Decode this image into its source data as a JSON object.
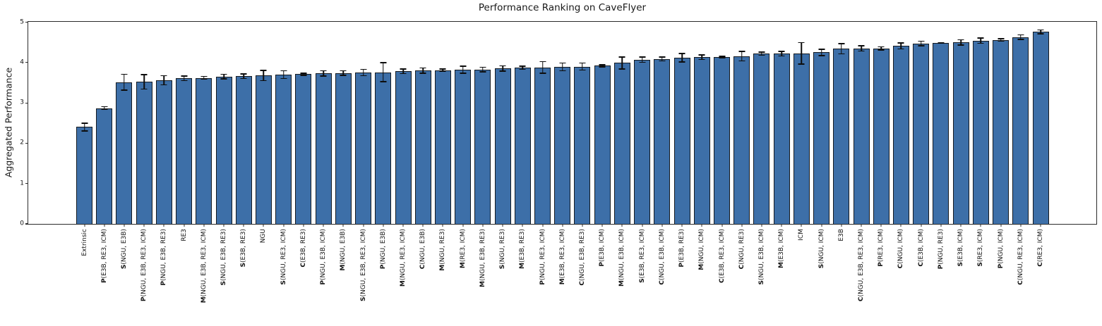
{
  "page": {
    "background": "#ffffff"
  },
  "chart_data": {
    "type": "bar",
    "title": "Performance Ranking on CaveFlyer",
    "xlabel": "",
    "ylabel": "Aggregated Performance",
    "ylim": [
      0,
      5
    ],
    "yticks": [
      0,
      1,
      2,
      3,
      4,
      5
    ],
    "grid": false,
    "error_bars": true,
    "bar_color": "#3D6FA8",
    "bar_edge_color": "#151a20",
    "error_color": "#0d0d0d",
    "bars": [
      {
        "label": "Extrinsic",
        "bold_prefix": "",
        "value": 2.4,
        "error": 0.11
      },
      {
        "label": "P(E3B, RE3, ICM)",
        "bold_prefix": "P",
        "value": 2.87,
        "error": 0.05
      },
      {
        "label": "S(NGU, E3B)",
        "bold_prefix": "S",
        "value": 3.51,
        "error": 0.21
      },
      {
        "label": "P(NGU, E3B, RE3, ICM)",
        "bold_prefix": "P",
        "value": 3.52,
        "error": 0.19
      },
      {
        "label": "P(NGU, E3B, RE3)",
        "bold_prefix": "P",
        "value": 3.56,
        "error": 0.13
      },
      {
        "label": "RE3",
        "bold_prefix": "",
        "value": 3.61,
        "error": 0.07
      },
      {
        "label": "M(NGU, E3B, RE3, ICM)",
        "bold_prefix": "M",
        "value": 3.62,
        "error": 0.05
      },
      {
        "label": "S(NGU, E3B, RE3)",
        "bold_prefix": "S",
        "value": 3.65,
        "error": 0.07
      },
      {
        "label": "S(E3B, RE3)",
        "bold_prefix": "S",
        "value": 3.66,
        "error": 0.07
      },
      {
        "label": "NGU",
        "bold_prefix": "",
        "value": 3.68,
        "error": 0.14
      },
      {
        "label": "S(NGU, RE3, ICM)",
        "bold_prefix": "S",
        "value": 3.7,
        "error": 0.11
      },
      {
        "label": "C(E3B, RE3)",
        "bold_prefix": "C",
        "value": 3.71,
        "error": 0.04
      },
      {
        "label": "P(NGU, E3B, ICM)",
        "bold_prefix": "P",
        "value": 3.73,
        "error": 0.08
      },
      {
        "label": "M(NGU, E3B)",
        "bold_prefix": "M",
        "value": 3.74,
        "error": 0.07
      },
      {
        "label": "S(NGU, E3B, RE3, ICM)",
        "bold_prefix": "S",
        "value": 3.75,
        "error": 0.09
      },
      {
        "label": "P(NGU, E3B)",
        "bold_prefix": "P",
        "value": 3.76,
        "error": 0.25
      },
      {
        "label": "M(NGU, RE3, ICM)",
        "bold_prefix": "M",
        "value": 3.78,
        "error": 0.07
      },
      {
        "label": "C(NGU, E3B)",
        "bold_prefix": "C",
        "value": 3.8,
        "error": 0.08
      },
      {
        "label": "M(NGU, RE3)",
        "bold_prefix": "M",
        "value": 3.81,
        "error": 0.04
      },
      {
        "label": "M(RE3, ICM)",
        "bold_prefix": "M",
        "value": 3.82,
        "error": 0.1
      },
      {
        "label": "M(NGU, E3B, RE3)",
        "bold_prefix": "M",
        "value": 3.83,
        "error": 0.07
      },
      {
        "label": "S(NGU, RE3)",
        "bold_prefix": "S",
        "value": 3.85,
        "error": 0.08
      },
      {
        "label": "M(E3B, RE3)",
        "bold_prefix": "M",
        "value": 3.87,
        "error": 0.05
      },
      {
        "label": "P(NGU, RE3, ICM)",
        "bold_prefix": "P",
        "value": 3.88,
        "error": 0.16
      },
      {
        "label": "M(E3B, RE3, ICM)",
        "bold_prefix": "M",
        "value": 3.89,
        "error": 0.11
      },
      {
        "label": "C(NGU, E3B, RE3)",
        "bold_prefix": "C",
        "value": 3.9,
        "error": 0.1
      },
      {
        "label": "P(E3B, ICM)",
        "bold_prefix": "P",
        "value": 3.92,
        "error": 0.04
      },
      {
        "label": "M(NGU, E3B, ICM)",
        "bold_prefix": "M",
        "value": 3.99,
        "error": 0.16
      },
      {
        "label": "S(E3B, RE3, ICM)",
        "bold_prefix": "S",
        "value": 4.07,
        "error": 0.08
      },
      {
        "label": "C(NGU, E3B, ICM)",
        "bold_prefix": "C",
        "value": 4.09,
        "error": 0.06
      },
      {
        "label": "P(E3B, RE3)",
        "bold_prefix": "P",
        "value": 4.12,
        "error": 0.12
      },
      {
        "label": "M(NGU, ICM)",
        "bold_prefix": "M",
        "value": 4.13,
        "error": 0.07
      },
      {
        "label": "C(E3B, RE3, ICM)",
        "bold_prefix": "C",
        "value": 4.14,
        "error": 0.03
      },
      {
        "label": "C(NGU, RE3)",
        "bold_prefix": "C",
        "value": 4.16,
        "error": 0.13
      },
      {
        "label": "S(NGU, E3B, ICM)",
        "bold_prefix": "S",
        "value": 4.22,
        "error": 0.05
      },
      {
        "label": "M(E3B, ICM)",
        "bold_prefix": "M",
        "value": 4.22,
        "error": 0.07
      },
      {
        "label": "ICM",
        "bold_prefix": "",
        "value": 4.23,
        "error": 0.28
      },
      {
        "label": "S(NGU, ICM)",
        "bold_prefix": "S",
        "value": 4.25,
        "error": 0.09
      },
      {
        "label": "E3B",
        "bold_prefix": "",
        "value": 4.34,
        "error": 0.14
      },
      {
        "label": "C(NGU, E3B, RE3, ICM)",
        "bold_prefix": "C",
        "value": 4.35,
        "error": 0.08
      },
      {
        "label": "P(RE3, ICM)",
        "bold_prefix": "P",
        "value": 4.35,
        "error": 0.05
      },
      {
        "label": "C(NGU, ICM)",
        "bold_prefix": "C",
        "value": 4.41,
        "error": 0.09
      },
      {
        "label": "C(E3B, ICM)",
        "bold_prefix": "C",
        "value": 4.47,
        "error": 0.07
      },
      {
        "label": "P(NGU, RE3)",
        "bold_prefix": "P",
        "value": 4.49,
        "error": 0.02
      },
      {
        "label": "S(E3B, ICM)",
        "bold_prefix": "S",
        "value": 4.5,
        "error": 0.08
      },
      {
        "label": "S(RE3, ICM)",
        "bold_prefix": "S",
        "value": 4.54,
        "error": 0.08
      },
      {
        "label": "P(NGU, ICM)",
        "bold_prefix": "P",
        "value": 4.56,
        "error": 0.04
      },
      {
        "label": "C(NGU, RE3, ICM)",
        "bold_prefix": "C",
        "value": 4.63,
        "error": 0.07
      },
      {
        "label": "C(RE3, ICM)",
        "bold_prefix": "C",
        "value": 4.76,
        "error": 0.06
      }
    ]
  }
}
